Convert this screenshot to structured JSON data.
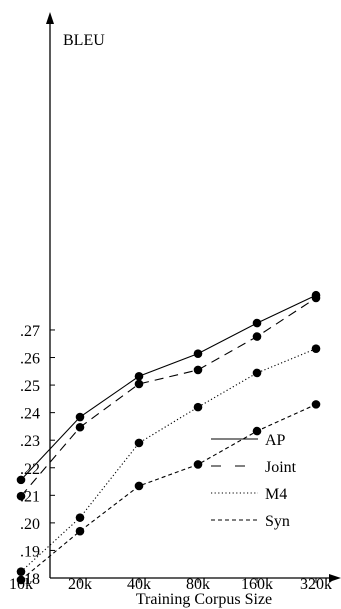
{
  "chart_data": {
    "type": "line",
    "title": "",
    "xlabel": "Training Corpus Size",
    "ylabel": "BLEU",
    "categories": [
      "10k",
      "20k",
      "40k",
      "80k",
      "160k",
      "320k"
    ],
    "ylim": [
      0.18,
      0.28
    ],
    "yticks": [
      ".18",
      ".19",
      ".20",
      ".21",
      ".22",
      ".23",
      ".24",
      ".25",
      ".26",
      ".27"
    ],
    "legend_position": "bottom-right",
    "grid": false,
    "series": [
      {
        "name": "AP",
        "style": "solid",
        "values": [
          0.2156,
          0.2384,
          0.2532,
          0.2614,
          0.2725,
          0.2826
        ]
      },
      {
        "name": "Joint",
        "style": "longdash",
        "values": [
          0.2097,
          0.2347,
          0.2504,
          0.2555,
          0.2676,
          0.2816
        ]
      },
      {
        "name": "M4",
        "style": "dotted",
        "values": [
          0.1823,
          0.2019,
          0.229,
          0.242,
          0.2544,
          0.2632
        ]
      },
      {
        "name": "Syn",
        "style": "shortdash",
        "values": [
          0.1793,
          0.197,
          0.2134,
          0.2212,
          0.2333,
          0.243
        ]
      }
    ],
    "colors": {
      "line": "#000000",
      "background": "#ffffff"
    }
  }
}
